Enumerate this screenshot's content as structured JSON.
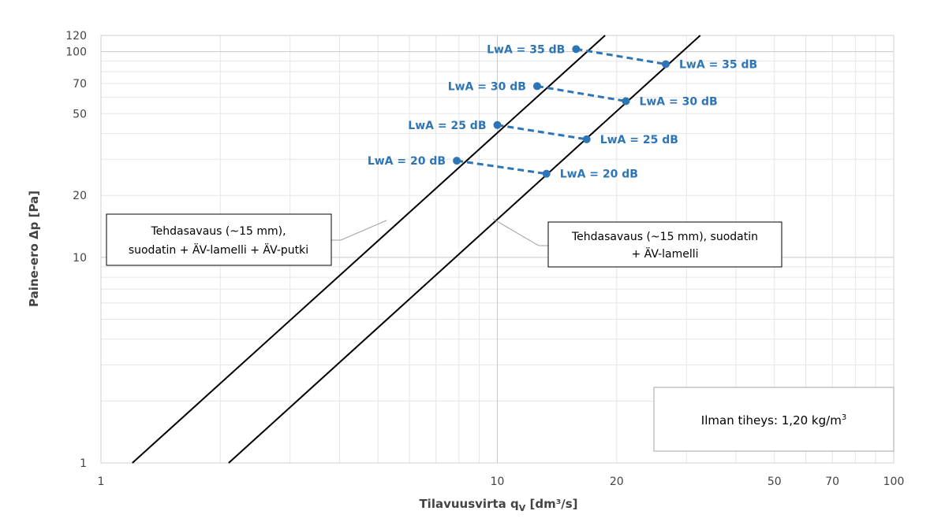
{
  "chart_data": {
    "type": "line",
    "title": "",
    "xlabel": "Tilavuusvirta q",
    "xlabel_sub": "V",
    "xlabel_unit": " [dm³/s]",
    "ylabel": "Paine-ero Δp [Pa]",
    "xscale": "log",
    "yscale": "log",
    "xlim": [
      1,
      100
    ],
    "ylim": [
      1,
      120
    ],
    "xticks": [
      1,
      10,
      20,
      50,
      70,
      100
    ],
    "yticks": [
      1,
      10,
      20,
      50,
      70,
      100,
      120
    ],
    "grid": true,
    "series": [
      {
        "name": "Tehdasavaus (~15 mm), suodatin + ÄV-lamelli + ÄV-putki",
        "style": "solid",
        "color": "#000000",
        "x": [
          1.2,
          18.7
        ],
        "y": [
          1,
          120
        ]
      },
      {
        "name": "Tehdasavaus (~15 mm), suodatin + ÄV-lamelli",
        "style": "solid",
        "color": "#000000",
        "x": [
          2.1,
          32.5
        ],
        "y": [
          1,
          120
        ]
      }
    ],
    "sound_points": [
      {
        "label": "LwA = 20 dB",
        "left": {
          "x": 7.9,
          "y": 29.5
        },
        "right": {
          "x": 13.3,
          "y": 25.5
        }
      },
      {
        "label": "LwA = 25 dB",
        "left": {
          "x": 10.0,
          "y": 44.0
        },
        "right": {
          "x": 16.8,
          "y": 37.5
        }
      },
      {
        "label": "LwA = 30 dB",
        "left": {
          "x": 12.6,
          "y": 68.0
        },
        "right": {
          "x": 21.1,
          "y": 57.5
        }
      },
      {
        "label": "LwA = 35 dB",
        "left": {
          "x": 15.8,
          "y": 103.0
        },
        "right": {
          "x": 26.6,
          "y": 87.0
        }
      }
    ],
    "sound_color": "#2e75b6",
    "annotations": {
      "left_box": [
        "Tehdasavaus (~15 mm),",
        "suodatin + ÄV-lamelli + ÄV-putki"
      ],
      "right_box": [
        "Tehdasavaus (~15 mm), suodatin",
        "+ ÄV-lamelli"
      ],
      "density_label": "Ilman tiheys: 1,20 kg/m",
      "density_sup": "3"
    }
  }
}
